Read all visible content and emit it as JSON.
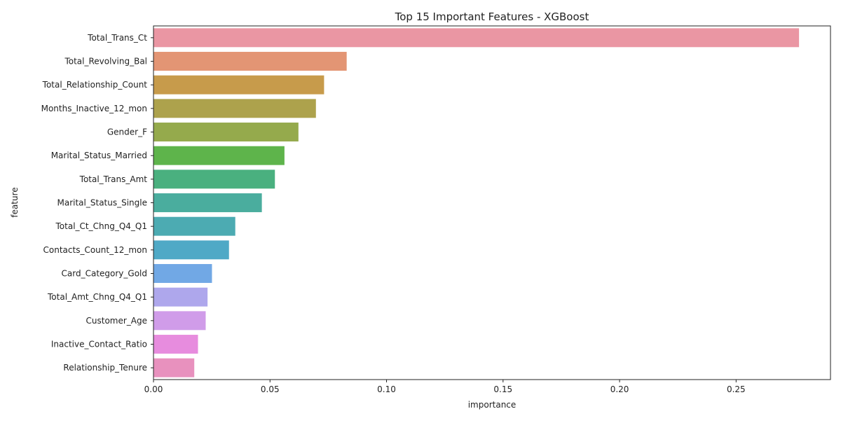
{
  "chart_data": {
    "type": "bar",
    "orientation": "horizontal",
    "title": "Top 15 Important Features - XGBoost",
    "xlabel": "importance",
    "ylabel": "feature",
    "xlim": [
      0,
      0.2905
    ],
    "xticks": [
      0,
      0.05,
      0.1,
      0.15,
      0.2,
      0.25
    ],
    "xtick_labels": [
      "0.00",
      "0.05",
      "0.10",
      "0.15",
      "0.20",
      "0.25"
    ],
    "grid": false,
    "legend": "none",
    "categories": [
      "Total_Trans_Ct",
      "Total_Revolving_Bal",
      "Total_Relationship_Count",
      "Months_Inactive_12_mon",
      "Gender_F",
      "Marital_Status_Married",
      "Total_Trans_Amt",
      "Marital_Status_Single",
      "Total_Ct_Chng_Q4_Q1",
      "Contacts_Count_12_mon",
      "Card_Category_Gold",
      "Total_Amt_Chng_Q4_Q1",
      "Customer_Age",
      "Inactive_Contact_Ratio",
      "Relationship_Tenure"
    ],
    "values": [
      0.277,
      0.0829,
      0.0732,
      0.0697,
      0.0622,
      0.0562,
      0.0521,
      0.0465,
      0.0351,
      0.0324,
      0.0251,
      0.0232,
      0.0224,
      0.0191,
      0.0175
    ],
    "colors": [
      "#ea96a3",
      "#e39574",
      "#c79b4b",
      "#ada24c",
      "#95aa4c",
      "#5eb44b",
      "#4ab07f",
      "#4aad9e",
      "#4cabb2",
      "#4fa9c6",
      "#71a8e5",
      "#aea7ec",
      "#d09ce9",
      "#e78cde",
      "#e891be"
    ]
  }
}
